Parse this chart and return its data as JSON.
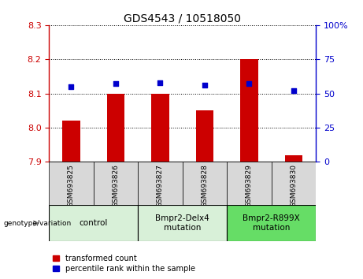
{
  "title": "GDS4543 / 10518050",
  "samples": [
    "GSM693825",
    "GSM693826",
    "GSM693827",
    "GSM693828",
    "GSM693829",
    "GSM693830"
  ],
  "transformed_count": [
    8.02,
    8.1,
    8.1,
    8.05,
    8.2,
    7.92
  ],
  "percentile_rank": [
    55,
    57,
    58,
    56,
    57,
    52
  ],
  "ylim_left": [
    7.9,
    8.3
  ],
  "ylim_right": [
    0,
    100
  ],
  "yticks_left": [
    7.9,
    8.0,
    8.1,
    8.2,
    8.3
  ],
  "yticks_right": [
    0,
    25,
    50,
    75,
    100
  ],
  "ytick_labels_right": [
    "0",
    "25",
    "50",
    "75",
    "100%"
  ],
  "bar_color": "#cc0000",
  "dot_color": "#0000cc",
  "bar_bottom": 7.9,
  "groups": [
    {
      "label": "control",
      "start": 0,
      "end": 2,
      "color": "#d8f0d8"
    },
    {
      "label": "Bmpr2-Delx4\nmutation",
      "start": 2,
      "end": 4,
      "color": "#d8f0d8"
    },
    {
      "label": "Bmpr2-R899X\nmutation",
      "start": 4,
      "end": 6,
      "color": "#66dd66"
    }
  ],
  "group_header": "genotype/variation",
  "legend_bar_label": "transformed count",
  "legend_dot_label": "percentile rank within the sample",
  "title_fontsize": 10,
  "tick_fontsize": 8,
  "sample_label_fontsize": 6.5,
  "group_label_fontsize": 7.5,
  "legend_fontsize": 7
}
